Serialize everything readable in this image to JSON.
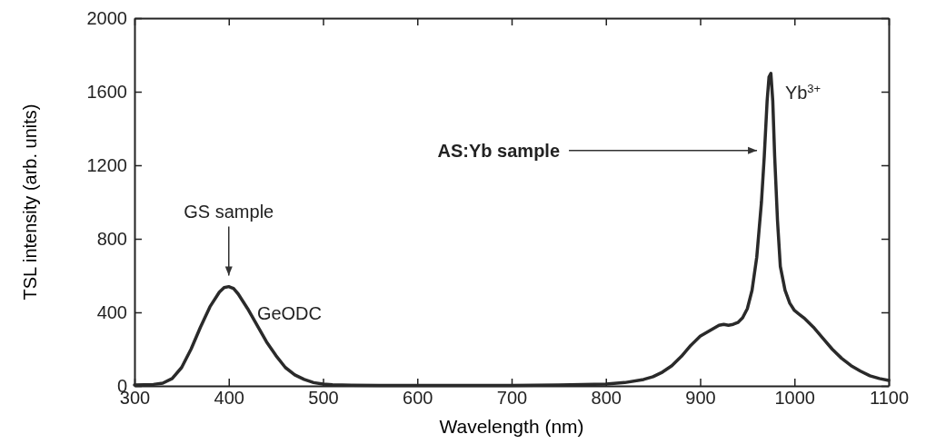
{
  "chart_data": {
    "type": "line",
    "xlabel": "Wavelength (nm)",
    "ylabel": "TSL intensity (arb. units)",
    "xlim": [
      300,
      1100
    ],
    "xticks": [
      300,
      400,
      500,
      600,
      700,
      800,
      900,
      1000,
      1100
    ],
    "ylim": [
      0,
      2000
    ],
    "yticks": [
      0,
      400,
      800,
      1200,
      1600,
      2000
    ],
    "series": [
      {
        "color": "#2a2a2a",
        "x": [
          300,
          320,
          330,
          340,
          350,
          360,
          370,
          380,
          390,
          395,
          400,
          405,
          410,
          420,
          430,
          440,
          450,
          460,
          470,
          480,
          490,
          500,
          510,
          530,
          560,
          600,
          650,
          700,
          750,
          800,
          820,
          840,
          850,
          860,
          870,
          880,
          890,
          900,
          910,
          920,
          925,
          930,
          935,
          940,
          945,
          950,
          955,
          960,
          965,
          968,
          971,
          973,
          975,
          977,
          979,
          982,
          985,
          990,
          995,
          1000,
          1005,
          1010,
          1020,
          1030,
          1040,
          1050,
          1060,
          1070,
          1080,
          1090,
          1100
        ],
        "values": [
          5,
          8,
          15,
          40,
          100,
          200,
          320,
          430,
          510,
          535,
          540,
          530,
          500,
          420,
          330,
          240,
          165,
          100,
          60,
          35,
          18,
          10,
          6,
          4,
          3,
          3,
          3,
          3,
          5,
          10,
          18,
          35,
          50,
          75,
          110,
          160,
          220,
          270,
          300,
          330,
          335,
          330,
          335,
          345,
          370,
          420,
          520,
          700,
          1000,
          1250,
          1550,
          1680,
          1700,
          1550,
          1250,
          900,
          650,
          520,
          450,
          410,
          390,
          370,
          320,
          260,
          200,
          150,
          110,
          80,
          55,
          40,
          30
        ]
      }
    ],
    "annotations": [
      "GS sample",
      "GeODC",
      "AS:Yb sample",
      "Yb$^{3+}$"
    ],
    "marker": "none",
    "line_style": "solid"
  }
}
